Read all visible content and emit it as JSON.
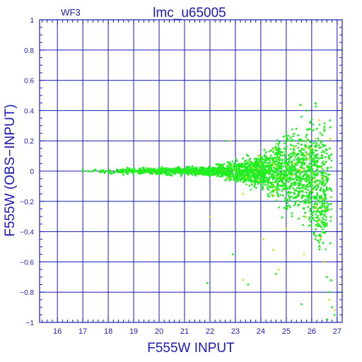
{
  "colors": {
    "frame": "#1a1ab4",
    "text": "#1a1ab4",
    "grid": "#1a1ab4",
    "points_main": "#22ee22",
    "points_secondary": "#dddd22",
    "background": "#ffffff"
  },
  "chart_data": {
    "type": "scatter",
    "title": "lmc_u65005",
    "corner_label": "WF3",
    "xlabel": "F555W  INPUT",
    "ylabel": "F555W  (OBS−INPUT)",
    "xlim": [
      15.3,
      27.2
    ],
    "ylim": [
      -1,
      1
    ],
    "grid": true,
    "x_ticks": [
      16,
      17,
      18,
      19,
      20,
      21,
      22,
      23,
      24,
      25,
      26,
      27
    ],
    "x_tick_labels": [
      "16",
      "17",
      "18",
      "19",
      "20",
      "21",
      "22",
      "23",
      "24",
      "25",
      "26",
      "27"
    ],
    "y_ticks": [
      -1,
      -0.8,
      -0.6,
      -0.4,
      -0.2,
      0,
      0.2,
      0.4,
      0.6,
      0.8,
      1
    ],
    "y_tick_labels": [
      "−1",
      "−0.8",
      "−0.6",
      "−0.4",
      "−0.2",
      "0",
      "0.2",
      "0.4",
      "0.6",
      "0.8",
      "1"
    ],
    "series": [
      {
        "color": "#22ee22",
        "points": [
          [
            17.0,
            0.01
          ],
          [
            17.2,
            0.0
          ],
          [
            17.5,
            0.01
          ],
          [
            17.8,
            0.0
          ],
          [
            18.0,
            0.005
          ],
          [
            18.3,
            -0.005
          ],
          [
            18.6,
            0.01
          ],
          [
            19.0,
            0.0
          ],
          [
            19.4,
            0.005
          ],
          [
            19.8,
            0.0
          ],
          [
            20.2,
            0.01
          ],
          [
            20.6,
            -0.005
          ],
          [
            21.0,
            0.005
          ],
          [
            21.4,
            0.01
          ],
          [
            21.8,
            -0.01
          ],
          [
            22.2,
            0.02
          ],
          [
            22.5,
            -0.02
          ],
          [
            22.8,
            0.03
          ],
          [
            23.0,
            -0.03
          ],
          [
            23.3,
            0.04
          ],
          [
            23.5,
            -0.04
          ],
          [
            23.8,
            0.06
          ],
          [
            24.0,
            -0.06
          ],
          [
            24.2,
            0.08
          ],
          [
            24.4,
            -0.08
          ],
          [
            24.6,
            0.12
          ],
          [
            24.8,
            -0.1
          ],
          [
            25.0,
            0.16
          ],
          [
            25.1,
            -0.14
          ],
          [
            25.2,
            0.2
          ],
          [
            25.3,
            -0.18
          ],
          [
            25.4,
            0.28
          ],
          [
            25.5,
            -0.22
          ],
          [
            25.6,
            0.36
          ],
          [
            25.7,
            -0.3
          ],
          [
            25.8,
            0.4
          ],
          [
            25.9,
            -0.36
          ],
          [
            26.0,
            0.34
          ],
          [
            26.1,
            -0.42
          ],
          [
            26.2,
            0.28
          ],
          [
            26.3,
            -0.5
          ],
          [
            26.4,
            0.1
          ],
          [
            26.5,
            -0.6
          ],
          [
            26.6,
            -0.7
          ],
          [
            26.7,
            -0.8
          ],
          [
            26.8,
            -0.9
          ],
          [
            26.9,
            -0.95
          ],
          [
            22.9,
            -0.55
          ],
          [
            23.5,
            -0.75
          ],
          [
            24.6,
            -0.68
          ],
          [
            25.6,
            -0.88
          ],
          [
            21.9,
            -0.74
          ],
          [
            22.6,
            0.2
          ],
          [
            26.6,
            -0.98
          ]
        ]
      },
      {
        "color": "#dddd22",
        "points": [
          [
            22.0,
            -0.3
          ],
          [
            22.8,
            0.2
          ],
          [
            23.3,
            -0.15
          ],
          [
            23.9,
            0.1
          ],
          [
            24.1,
            -0.45
          ],
          [
            24.5,
            -0.52
          ],
          [
            25.0,
            -0.38
          ],
          [
            25.3,
            0.05
          ],
          [
            25.7,
            -0.55
          ],
          [
            26.0,
            0.15
          ],
          [
            26.2,
            -0.25
          ],
          [
            26.5,
            -0.6
          ],
          [
            26.7,
            -0.85
          ],
          [
            26.9,
            -0.92
          ],
          [
            23.3,
            -0.72
          ],
          [
            24.7,
            -0.65
          ],
          [
            26.3,
            -0.33
          ],
          [
            25.9,
            0.08
          ]
        ]
      }
    ]
  }
}
